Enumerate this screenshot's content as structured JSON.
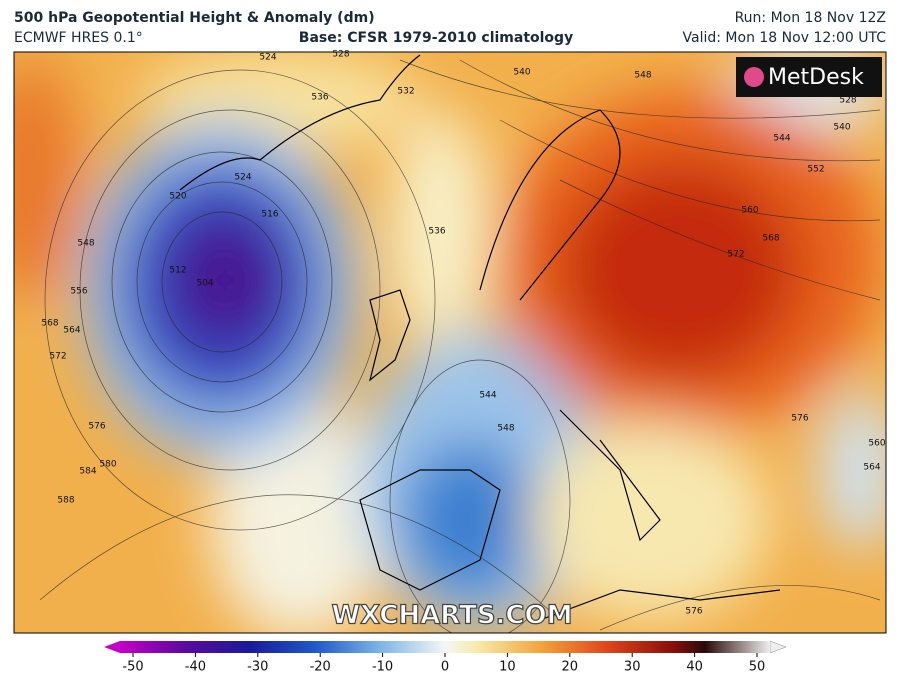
{
  "header": {
    "title": "500 hPa Geopotential Height & Anomaly (dm)",
    "model": "ECMWF HRES 0.1°",
    "base": "Base: CFSR 1979-2010 climatology",
    "run": "Run: Mon 18 Nov 12Z",
    "valid": "Valid: Mon 18 Nov 12:00 UTC"
  },
  "logo": "MetDesk",
  "watermark": "WXCHARTS.COM",
  "contour_labels": [
    528,
    524,
    536,
    532,
    540,
    548,
    528,
    540,
    544,
    552,
    560,
    568,
    572,
    524,
    520,
    516,
    536,
    548,
    556,
    564,
    568,
    572,
    504,
    512,
    576,
    580,
    584,
    588,
    544,
    548,
    576,
    560,
    564,
    576
  ],
  "colorbar": {
    "ticks": [
      -50,
      -40,
      -30,
      -20,
      -10,
      0,
      10,
      20,
      30,
      40,
      50
    ]
  }
}
